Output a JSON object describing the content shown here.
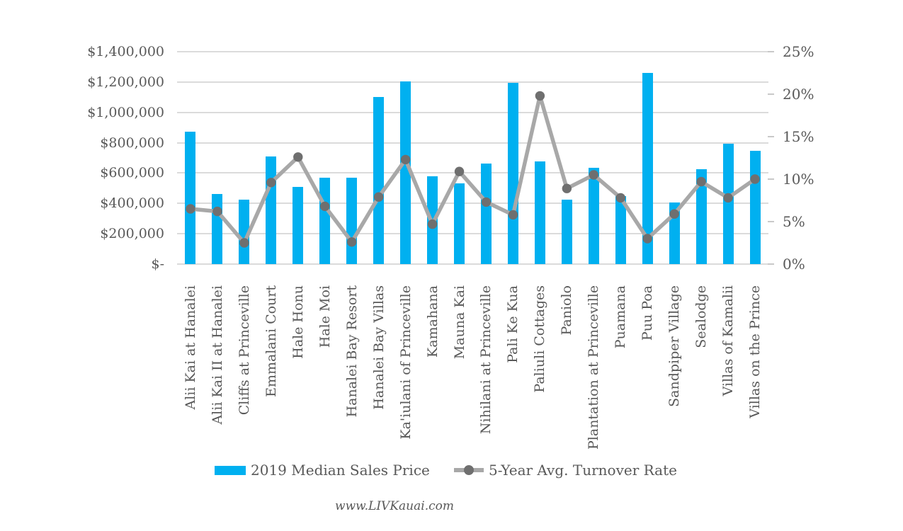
{
  "chart_data": {
    "type": "bar",
    "subtype": "combo-bar-line-dual-axis",
    "categories": [
      "Alii Kai at Hanalei",
      "Alii Kai II at Hanalei",
      "Cliffs at Princeville",
      "Emmalani Court",
      "Hale Honu",
      "Hale Moi",
      "Hanalei Bay Resort",
      "Hanalei Bay Villas",
      "Ka'iulani of Princeville",
      "Kamahana",
      "Mauna Kai",
      "Nihilani at Princeville",
      "Pali Ke Kua",
      "Paliuli Cottages",
      "Paniolo",
      "Plantation at Princeville",
      "Puamana",
      "Puu Poa",
      "Sandpiper Village",
      "Sealodge",
      "Villas of Kamalii",
      "Villas on the Prince"
    ],
    "series": [
      {
        "name": "2019 Median Sales Price",
        "type": "bar",
        "axis": "left",
        "color": "#00B0F0",
        "values": [
          875000,
          460000,
          425000,
          710000,
          510000,
          570000,
          570000,
          1100000,
          1205000,
          580000,
          530000,
          665000,
          1195000,
          675000,
          425000,
          635000,
          450000,
          1260000,
          405000,
          625000,
          795000,
          745000
        ]
      },
      {
        "name": "5-Year Avg. Turnover Rate",
        "type": "line",
        "axis": "right",
        "color": "#A8A8A8",
        "marker_color": "#6F6F6F",
        "values": [
          6.5,
          6.2,
          2.5,
          9.6,
          12.6,
          6.8,
          2.6,
          7.9,
          12.3,
          4.7,
          10.9,
          7.3,
          5.8,
          19.8,
          8.9,
          10.5,
          7.8,
          3.0,
          5.9,
          9.7,
          7.8,
          10.0
        ]
      }
    ],
    "left_axis": {
      "ticks": [
        "$1,400,000",
        "$1,200,000",
        "$1,000,000",
        "$800,000",
        "$600,000",
        "$400,000",
        "$200,000",
        "$-"
      ],
      "min": 0,
      "max": 1400000,
      "step": 200000
    },
    "right_axis": {
      "ticks": [
        "25%",
        "20%",
        "15%",
        "10%",
        "5%",
        "0%"
      ],
      "min": 0,
      "max": 25,
      "step": 5
    },
    "grid": "horizontal",
    "legend_position": "bottom",
    "gridline_color": "#DBDBDB",
    "text_color": "#595959"
  },
  "footer": {
    "text": "www.LIVKauai.com"
  }
}
